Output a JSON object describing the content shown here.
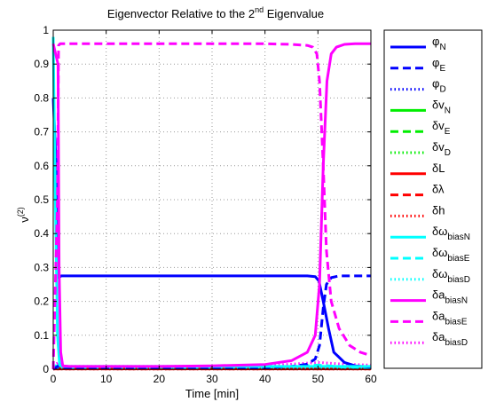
{
  "chart_data": {
    "type": "line",
    "title_main": "Eigenvector Relative to the 2",
    "title_sup": "nd",
    "title_end": " Eigenvalue",
    "xlabel": "Time [min]",
    "ylabel_main": "ν",
    "ylabel_sup": "(2)",
    "xlim": [
      0,
      60
    ],
    "ylim": [
      0,
      1
    ],
    "xticks": [
      "0",
      "10",
      "20",
      "30",
      "40",
      "50",
      "60"
    ],
    "yticks": [
      "0",
      "0.1",
      "0.2",
      "0.3",
      "0.4",
      "0.5",
      "0.6",
      "0.7",
      "0.8",
      "0.9",
      "1"
    ],
    "grid": true,
    "legend_position": "right-outside",
    "series": [
      {
        "name": "φ",
        "sub": "N",
        "color": "#0000ff",
        "style": "solid",
        "x": [
          0,
          0.8,
          1.0,
          1.2,
          1.5,
          2,
          5,
          10,
          20,
          30,
          40,
          45,
          48,
          49.5,
          50.2,
          51,
          52,
          53,
          55,
          57,
          60
        ],
        "y": [
          0.8,
          0.5,
          0.27,
          0.272,
          0.275,
          0.275,
          0.275,
          0.275,
          0.275,
          0.275,
          0.275,
          0.275,
          0.275,
          0.273,
          0.26,
          0.2,
          0.12,
          0.05,
          0.02,
          0.01,
          0.006
        ]
      },
      {
        "name": "φ",
        "sub": "E",
        "color": "#0000ff",
        "style": "dashed",
        "x": [
          0,
          1,
          1.2,
          2,
          10,
          20,
          30,
          40,
          45,
          48,
          49.5,
          50.3,
          51,
          51.6,
          52.5,
          54,
          57,
          60
        ],
        "y": [
          0,
          0.01,
          0.005,
          0.005,
          0.005,
          0.005,
          0.005,
          0.005,
          0.008,
          0.015,
          0.03,
          0.07,
          0.18,
          0.25,
          0.27,
          0.275,
          0.275,
          0.275
        ]
      },
      {
        "name": "φ",
        "sub": "D",
        "color": "#0000ff",
        "style": "dotted",
        "x": [
          0,
          60
        ],
        "y": [
          0.001,
          0.001
        ]
      },
      {
        "name": "δv",
        "sub": "N",
        "color": "#00ee00",
        "style": "solid",
        "x": [
          0,
          60
        ],
        "y": [
          0.002,
          0.002
        ]
      },
      {
        "name": "δv",
        "sub": "E",
        "color": "#00ee00",
        "style": "dashed",
        "x": [
          0,
          60
        ],
        "y": [
          0.002,
          0.002
        ]
      },
      {
        "name": "δv",
        "sub": "D",
        "color": "#00ee00",
        "style": "dotted",
        "x": [
          0,
          60
        ],
        "y": [
          0.001,
          0.001
        ]
      },
      {
        "name": "δL",
        "sub": "",
        "color": "#ff0000",
        "style": "solid",
        "x": [
          0,
          60
        ],
        "y": [
          0.001,
          0.001
        ]
      },
      {
        "name": "δλ",
        "sub": "",
        "color": "#ff0000",
        "style": "dashed",
        "x": [
          0,
          60
        ],
        "y": [
          0.001,
          0.001
        ]
      },
      {
        "name": "δh",
        "sub": "",
        "color": "#ff0000",
        "style": "dotted",
        "x": [
          0,
          60
        ],
        "y": [
          0.001,
          0.001
        ]
      },
      {
        "name": "δω",
        "sub": "biasN",
        "color": "#00ffff",
        "style": "solid",
        "x": [
          0,
          0.3,
          0.8,
          1.2,
          2,
          10,
          20,
          30,
          40,
          50,
          60
        ],
        "y": [
          0.98,
          0.6,
          0.1,
          0.012,
          0.008,
          0.008,
          0.008,
          0.008,
          0.008,
          0.008,
          0.008
        ]
      },
      {
        "name": "δω",
        "sub": "biasE",
        "color": "#00ffff",
        "style": "dashed",
        "x": [
          0,
          1.2,
          2,
          20,
          40,
          45,
          50,
          52,
          55,
          60
        ],
        "y": [
          0.01,
          0.01,
          0.005,
          0.005,
          0.006,
          0.008,
          0.012,
          0.01,
          0.006,
          0.005
        ]
      },
      {
        "name": "δω",
        "sub": "biasD",
        "color": "#00ffff",
        "style": "dotted",
        "x": [
          0,
          60
        ],
        "y": [
          0.003,
          0.003
        ]
      },
      {
        "name": "δa",
        "sub": "biasN",
        "color": "#ff00ff",
        "style": "solid",
        "x": [
          0,
          0.9,
          1.1,
          1.4,
          1.8,
          3,
          10,
          20,
          30,
          40,
          45,
          48,
          49.5,
          50.3,
          51,
          51.7,
          52.5,
          53.5,
          55,
          57,
          60
        ],
        "y": [
          0.96,
          0.9,
          0.3,
          0.05,
          0.01,
          0.008,
          0.008,
          0.008,
          0.01,
          0.014,
          0.025,
          0.05,
          0.1,
          0.25,
          0.6,
          0.85,
          0.93,
          0.95,
          0.958,
          0.96,
          0.96
        ]
      },
      {
        "name": "δa",
        "sub": "biasE",
        "color": "#ff00ff",
        "style": "dashed",
        "x": [
          0,
          0.8,
          1.0,
          1.3,
          5,
          20,
          30,
          40,
          45,
          48,
          49,
          49.8,
          50.3,
          51,
          51.6,
          52.5,
          54,
          56,
          58,
          60
        ],
        "y": [
          0,
          0.5,
          0.955,
          0.96,
          0.96,
          0.96,
          0.96,
          0.96,
          0.958,
          0.955,
          0.95,
          0.93,
          0.85,
          0.6,
          0.35,
          0.2,
          0.12,
          0.07,
          0.05,
          0.04
        ]
      },
      {
        "name": "δa",
        "sub": "biasD",
        "color": "#ff00ff",
        "style": "dotted",
        "x": [
          0,
          1,
          2,
          20,
          40,
          50,
          55,
          60
        ],
        "y": [
          0.01,
          0.02,
          0.008,
          0.008,
          0.01,
          0.02,
          0.015,
          0.012
        ]
      }
    ]
  }
}
